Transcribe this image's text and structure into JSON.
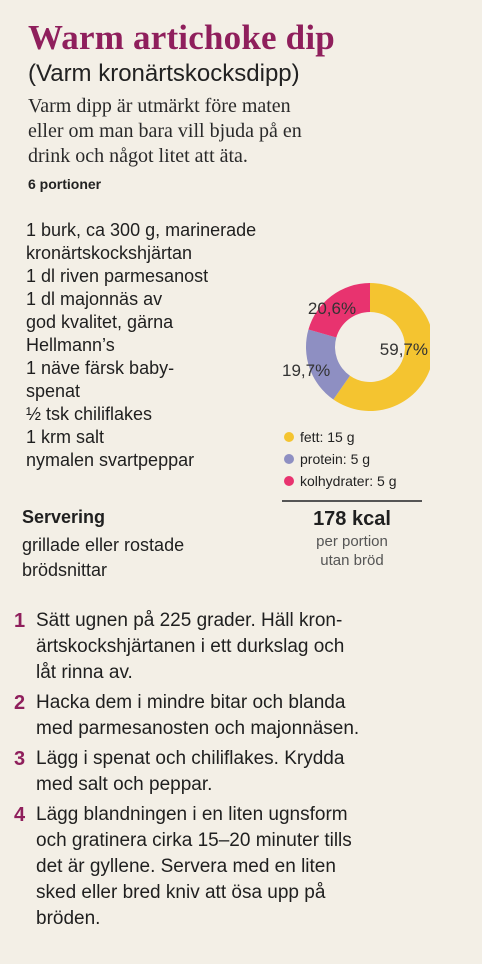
{
  "recipe": {
    "title": "Warm artichoke dip",
    "subtitle": "(Varm kronärtskocksdipp)",
    "intro_lines": [
      "Varm dipp är utmärkt före maten",
      "eller om man bara vill bjuda på en",
      "drink och något litet att äta."
    ],
    "servings": "6 portioner",
    "ingredient_lines": [
      "1 burk, ca 300 g, marinerade",
      "kronärtskockshjärtan",
      "1 dl riven parmesanost",
      "1 dl majonnäs av",
      "god kvalitet, gärna",
      "Hellmann’s",
      "1 näve färsk baby-",
      "spenat",
      "½ tsk chiliflakes",
      "1 krm salt",
      "nymalen svartpeppar"
    ],
    "serving": {
      "heading": "Servering",
      "lines": [
        "grillade eller rostade",
        "brödsnittar"
      ]
    },
    "steps": [
      {
        "num": "1",
        "lines": [
          "Sätt ugnen på 225 grader. Häll kron-",
          "ärtskockshjärtanen i ett durkslag och",
          "låt rinna av."
        ]
      },
      {
        "num": "2",
        "lines": [
          "Hacka dem i mindre bitar och blanda",
          "med parmesanosten och majonnäsen."
        ]
      },
      {
        "num": "3",
        "lines": [
          "Lägg i spenat och chiliflakes. Krydda",
          "med salt och peppar."
        ]
      },
      {
        "num": "4",
        "lines": [
          "Lägg blandningen i en liten ugnsform",
          "och gratinera cirka 15–20 minuter tills",
          "det är gyllene. Servera med en liten",
          "sked eller bred kniv att ösa upp på",
          "bröden."
        ]
      }
    ]
  },
  "nutrition": {
    "legend": [
      {
        "label": "fett: 15 g",
        "color": "#f4c430"
      },
      {
        "label": "protein: 5 g",
        "color": "#8e8fc2"
      },
      {
        "label": "kolhydrater: 5 g",
        "color": "#e8336f"
      }
    ],
    "kcal": "178 kcal",
    "kcal_sub": [
      "per portion",
      "utan bröd"
    ]
  },
  "chart_data": {
    "type": "pie",
    "categories": [
      "fett",
      "protein",
      "kolhydrater"
    ],
    "values": [
      59.7,
      19.7,
      20.6
    ],
    "labels": [
      "59,7%",
      "19,7%",
      "20,6%"
    ],
    "colors": [
      "#f4c430",
      "#8e8fc2",
      "#e8336f"
    ],
    "donut": true
  }
}
